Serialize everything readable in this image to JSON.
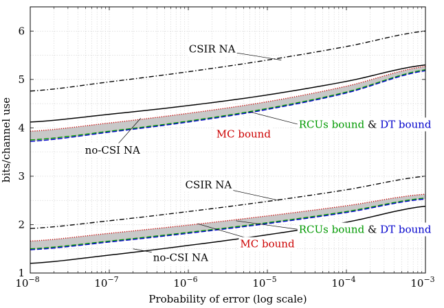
{
  "chart_data": {
    "type": "line",
    "xscale": "log",
    "xlabel": "Probability of error (log scale)",
    "ylabel": "bits/channel use",
    "xlim": [
      1e-08,
      0.001
    ],
    "ylim": [
      1,
      6.5
    ],
    "grid": true,
    "x": [
      1e-08,
      1e-07,
      1e-06,
      1e-05,
      0.0001,
      0.001
    ],
    "xticks": [
      {
        "value": 1e-08,
        "label": "10",
        "exp": "−8"
      },
      {
        "value": 1e-07,
        "label": "10",
        "exp": "−7"
      },
      {
        "value": 1e-06,
        "label": "10",
        "exp": "−6"
      },
      {
        "value": 1e-05,
        "label": "10",
        "exp": "−5"
      },
      {
        "value": 0.0001,
        "label": "10",
        "exp": "−4"
      },
      {
        "value": 0.001,
        "label": "10",
        "exp": "−3"
      }
    ],
    "yticks": [
      {
        "value": 1,
        "label": "1"
      },
      {
        "value": 2,
        "label": "2"
      },
      {
        "value": 3,
        "label": "3"
      },
      {
        "value": 4,
        "label": "4"
      },
      {
        "value": 5,
        "label": "5"
      },
      {
        "value": 6,
        "label": "6"
      }
    ],
    "series": [
      {
        "group": "upper",
        "curve": "csir",
        "color": "#000000",
        "dash": "dashdot",
        "values": [
          4.76,
          4.95,
          5.16,
          5.4,
          5.68,
          6.0
        ]
      },
      {
        "group": "upper",
        "curve": "nocsi",
        "color": "#000000",
        "dash": "solid",
        "values": [
          4.12,
          4.28,
          4.46,
          4.68,
          4.96,
          5.3
        ]
      },
      {
        "group": "upper",
        "curve": "mc",
        "color": "#cc0000",
        "dash": "dotted",
        "values": [
          3.93,
          4.1,
          4.3,
          4.54,
          4.86,
          5.27
        ]
      },
      {
        "group": "upper",
        "curve": "rcus",
        "color": "#009900",
        "dash": "dashed",
        "values": [
          3.75,
          3.93,
          4.14,
          4.4,
          4.74,
          5.2
        ]
      },
      {
        "group": "upper",
        "curve": "dt",
        "color": "#0000cc",
        "dash": "dashed",
        "values": [
          3.72,
          3.91,
          4.12,
          4.38,
          4.72,
          5.18
        ]
      },
      {
        "group": "lower",
        "curve": "csir",
        "color": "#000000",
        "dash": "dashdot",
        "values": [
          1.92,
          2.08,
          2.27,
          2.48,
          2.72,
          3.0
        ]
      },
      {
        "group": "lower",
        "curve": "nocsi",
        "color": "#000000",
        "dash": "solid",
        "values": [
          1.2,
          1.37,
          1.57,
          1.79,
          2.05,
          2.38
        ]
      },
      {
        "group": "lower",
        "curve": "mc",
        "color": "#cc0000",
        "dash": "dotted",
        "values": [
          1.66,
          1.82,
          1.99,
          2.18,
          2.39,
          2.63
        ]
      },
      {
        "group": "lower",
        "curve": "rcus",
        "color": "#009900",
        "dash": "dashed",
        "values": [
          1.5,
          1.66,
          1.84,
          2.04,
          2.27,
          2.55
        ]
      },
      {
        "group": "lower",
        "curve": "dt",
        "color": "#0000cc",
        "dash": "dashed",
        "values": [
          1.48,
          1.64,
          1.82,
          2.02,
          2.25,
          2.53
        ]
      }
    ],
    "shaded_bands": [
      {
        "group": "upper",
        "between": [
          "mc",
          "dt"
        ],
        "color": "#c8c8c8"
      },
      {
        "group": "lower",
        "between": [
          "mc",
          "dt"
        ],
        "color": "#c8c8c8"
      }
    ],
    "annotations": [
      {
        "id": "csir-upper",
        "text": "CSIR NA",
        "color": "#000000",
        "at": [
          2e-06,
          5.63
        ],
        "point": [
          1.5e-05,
          5.4
        ]
      },
      {
        "id": "nocsi-upper",
        "text": "no-CSI NA",
        "color": "#000000",
        "at": [
          1.1e-07,
          3.54
        ],
        "point": [
          2.5e-07,
          4.2
        ]
      },
      {
        "id": "mc-upper",
        "text": "MC bound",
        "color": "#cc0000",
        "at": [
          5e-06,
          3.87
        ],
        "point": null
      },
      {
        "id": "rcus-dt-upper",
        "parts": [
          {
            "text": "RCUs bound",
            "color": "#009900"
          },
          {
            "text": " & ",
            "color": "#000000"
          },
          {
            "text": "DT bound",
            "color": "#0000cc"
          }
        ],
        "at": [
          2.5e-05,
          4.07
        ],
        "point": [
          6e-06,
          4.33
        ]
      },
      {
        "id": "csir-lower",
        "text": "CSIR NA",
        "color": "#000000",
        "at": [
          1.8e-06,
          2.82
        ],
        "point": [
          1.4e-05,
          2.5
        ]
      },
      {
        "id": "nocsi-lower",
        "text": "no-CSI NA",
        "color": "#000000",
        "at": [
          8e-07,
          1.32
        ],
        "point": [
          2e-07,
          1.5
        ]
      },
      {
        "id": "mc-lower",
        "text": "MC bound",
        "color": "#cc0000",
        "at": [
          1e-05,
          1.6
        ],
        "point": [
          1.3e-06,
          2.02
        ]
      },
      {
        "id": "rcus-dt-lower",
        "parts": [
          {
            "text": "RCUs bound",
            "color": "#009900"
          },
          {
            "text": " & ",
            "color": "#000000"
          },
          {
            "text": "DT bound",
            "color": "#0000cc"
          }
        ],
        "at": [
          2.5e-05,
          1.9
        ],
        "point": [
          4e-06,
          2.08
        ]
      }
    ]
  }
}
